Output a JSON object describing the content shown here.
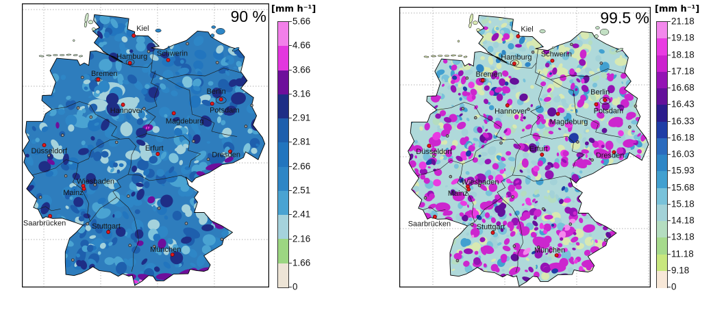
{
  "figure": {
    "description": "Precipitation intensity percentile maps of Germany"
  },
  "panels": [
    {
      "title": "90 %",
      "unit_label": "[mm h⁻¹]",
      "colorbar": {
        "ticks": [
          "5.66",
          "4.66",
          "3.66",
          "3.16",
          "2.91",
          "2.81",
          "2.66",
          "2.51",
          "2.41",
          "2.16",
          "1.66",
          "0"
        ],
        "segment_colors_top_to_bottom": [
          "#F27FE9",
          "#E337DE",
          "#6E0F9B",
          "#1E2E86",
          "#1E5FAD",
          "#2275BE",
          "#2E86C6",
          "#4AA3D2",
          "#A5D2DC",
          "#9CD682",
          "#EDE4D6"
        ]
      },
      "map": {
        "base_color": "#2E7DBD",
        "cities": [
          "Kiel",
          "Hamburg",
          "Schwerin",
          "Bremen",
          "Berlin",
          "Potsdam",
          "Hannover",
          "Magdeburg",
          "Düsseldorf",
          "Erfurt",
          "Dresden",
          "Wiesbaden",
          "Mainz",
          "Saarbrücken",
          "Stuttgart",
          "München"
        ]
      }
    },
    {
      "title": "99.5 %",
      "unit_label": "[mm h⁻¹]",
      "colorbar": {
        "ticks": [
          "21.18",
          "19.18",
          "18.18",
          "17.18",
          "16.68",
          "16.43",
          "16.33",
          "16.18",
          "16.03",
          "15.93",
          "15.68",
          "15.18",
          "14.18",
          "13.18",
          "11.18",
          "9.18",
          "0"
        ],
        "segment_colors_top_to_bottom": [
          "#F388EC",
          "#E93BE2",
          "#CC20CE",
          "#9413B4",
          "#64109A",
          "#2B1C8C",
          "#1F3DA6",
          "#2B6BBE",
          "#2E86C6",
          "#42A0D0",
          "#79C2DA",
          "#A3D2D8",
          "#B4DDC0",
          "#A6DA8C",
          "#C8E77E",
          "#F8E8D8"
        ]
      },
      "map": {
        "base_color": "#AFD9DA",
        "cities": [
          "Kiel",
          "Hamburg",
          "Schwerin",
          "Bremen",
          "Berlin",
          "Potsdam",
          "Hannover",
          "Magdeburg",
          "Düsseldorf",
          "Erfurt",
          "Dresden",
          "Wiesbaden",
          "Mainz",
          "Saarbrücken",
          "Stuttgart",
          "München"
        ]
      }
    }
  ]
}
